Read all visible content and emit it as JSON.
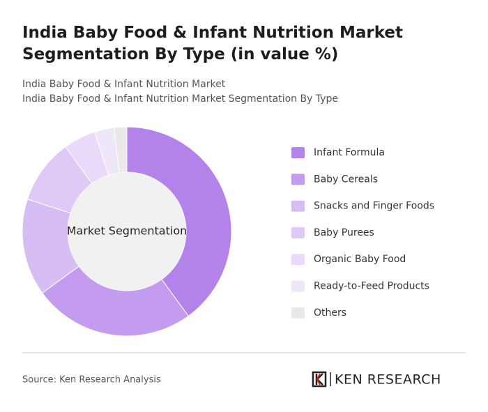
{
  "chart_data": {
    "type": "donut",
    "title": "India Baby Food & Infant Nutrition Market Segmentation By Type (in value %)",
    "subtitles": [
      "India Baby Food & Infant Nutrition Market",
      "India Baby Food & Infant Nutrition Market Segmentation By Type"
    ],
    "center_label": "Market Segmentation",
    "categories": [
      "Infant Formula",
      "Baby Cereals",
      "Snacks and Finger Foods",
      "Baby Purees",
      "Organic Baby Food",
      "Ready-to-Feed Products",
      "Others"
    ],
    "values": [
      40,
      25,
      15,
      10,
      5,
      3,
      2
    ],
    "colors": [
      "#b383ea",
      "#c49cef",
      "#d6bdf4",
      "#dfc9f6",
      "#e8daf8",
      "#efe6fa",
      "#e9e9e9"
    ],
    "source": "Source: Ken Research Analysis",
    "brand": "KEN RESEARCH"
  }
}
